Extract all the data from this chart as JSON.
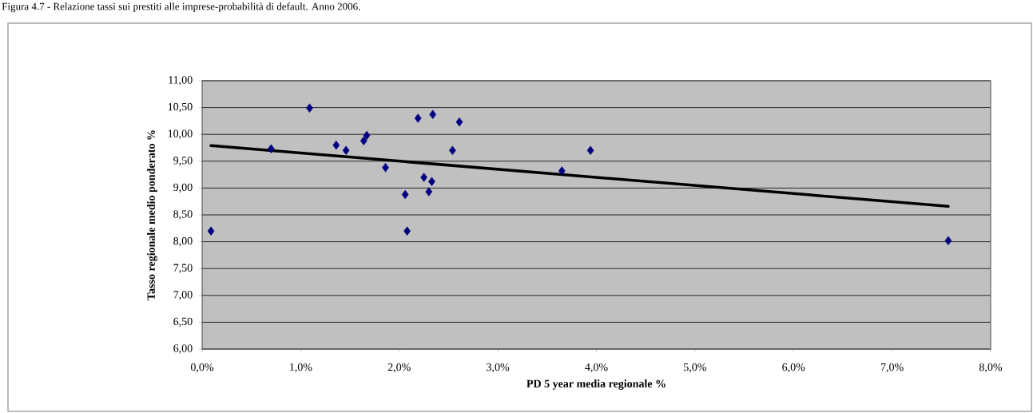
{
  "chart_data": {
    "type": "scatter",
    "title": "Figura 4.7 - Relazione tassi sui prestiti alle imprese-probabilità di default. Anno 2006.",
    "xlabel": "PD 5 year media regionale %",
    "ylabel": "Tasso regionale medio ponderato %",
    "xlim": [
      0,
      8
    ],
    "ylim": [
      6,
      11
    ],
    "xticks": [
      {
        "value": 0,
        "label": "0,0%"
      },
      {
        "value": 1,
        "label": "1,0%"
      },
      {
        "value": 2,
        "label": "2,0%"
      },
      {
        "value": 3,
        "label": "3,0%"
      },
      {
        "value": 4,
        "label": "4,0%"
      },
      {
        "value": 5,
        "label": "5,0%"
      },
      {
        "value": 6,
        "label": "6,0%"
      },
      {
        "value": 7,
        "label": "7,0%"
      },
      {
        "value": 8,
        "label": "8,0%"
      }
    ],
    "yticks": [
      {
        "value": 6,
        "label": "6,00"
      },
      {
        "value": 6.5,
        "label": "6,50"
      },
      {
        "value": 7,
        "label": "7,00"
      },
      {
        "value": 7.5,
        "label": "7,50"
      },
      {
        "value": 8,
        "label": "8,00"
      },
      {
        "value": 8.5,
        "label": "8,50"
      },
      {
        "value": 9,
        "label": "9,00"
      },
      {
        "value": 9.5,
        "label": "9,50"
      },
      {
        "value": 10,
        "label": "10,00"
      },
      {
        "value": 10.5,
        "label": "10,50"
      },
      {
        "value": 11,
        "label": "11,00"
      }
    ],
    "grid": "y",
    "series": [
      {
        "type": "scatter",
        "color": "#000080",
        "marker": "diamond",
        "x": [
          0.09,
          0.7,
          1.09,
          1.36,
          1.46,
          1.64,
          1.67,
          1.86,
          2.06,
          2.08,
          2.19,
          2.25,
          2.33,
          2.3,
          2.34,
          2.54,
          2.61,
          3.65,
          3.94,
          7.57
        ],
        "values": [
          8.2,
          9.73,
          10.49,
          9.8,
          9.7,
          9.88,
          9.98,
          9.38,
          8.88,
          8.2,
          10.3,
          9.2,
          9.12,
          8.93,
          10.37,
          9.7,
          10.23,
          9.32,
          9.7,
          8.02
        ]
      },
      {
        "type": "line",
        "color": "#000000",
        "marker": "none",
        "line_style": "solid",
        "x": [
          0.09,
          7.57
        ],
        "values": [
          9.79,
          8.66
        ]
      }
    ]
  }
}
